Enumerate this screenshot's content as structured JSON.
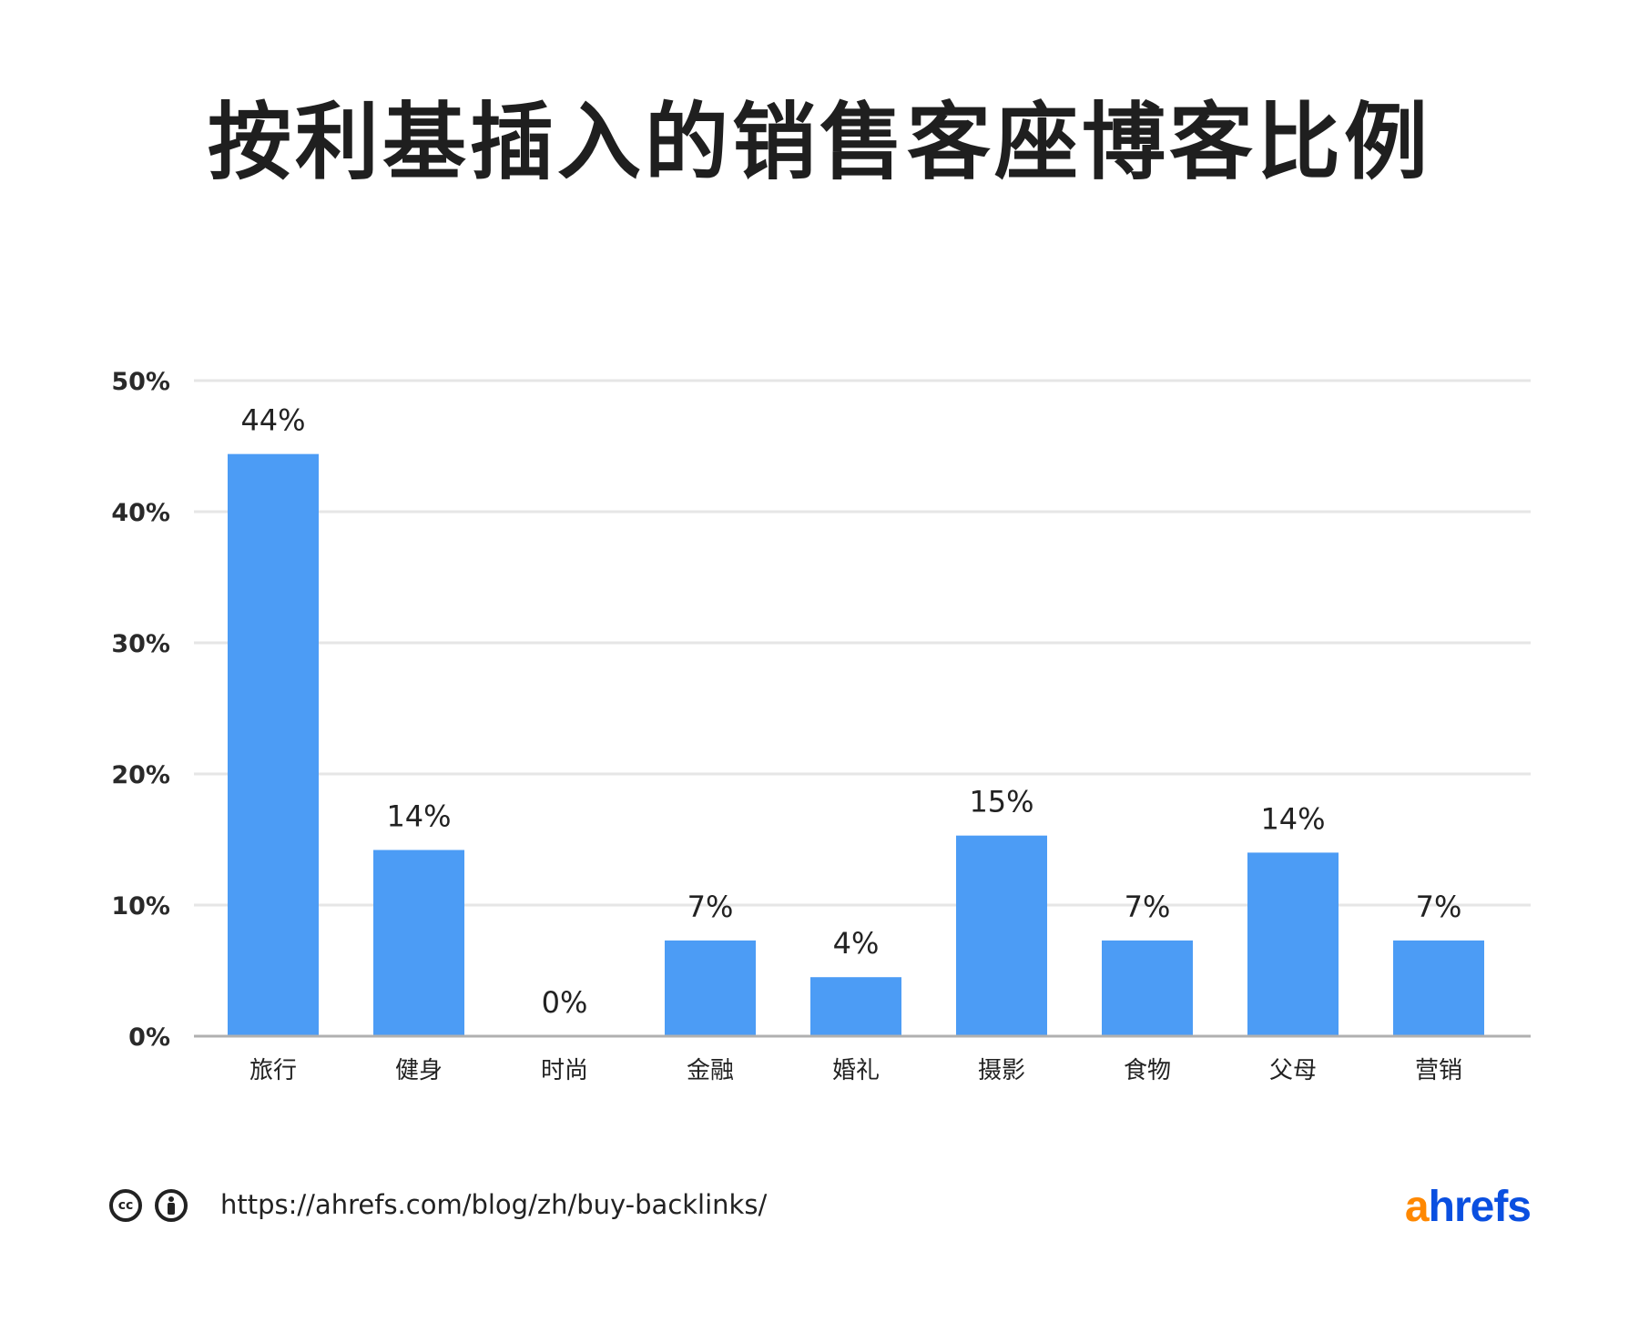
{
  "chart_data": {
    "type": "bar",
    "title": "按利基插入的销售客座博客比例",
    "xlabel": "",
    "ylabel": "",
    "categories": [
      "旅行",
      "健身",
      "时尚",
      "金融",
      "婚礼",
      "摄影",
      "食物",
      "父母",
      "营销"
    ],
    "values": [
      44.4,
      14.2,
      0,
      7.3,
      4.5,
      15.3,
      7.3,
      14.0,
      7.3
    ],
    "data_labels": [
      "44%",
      "14%",
      "0%",
      "7%",
      "4%",
      "15%",
      "7%",
      "14%",
      "7%"
    ],
    "ylim": [
      0,
      50
    ],
    "yticks": [
      0,
      10,
      20,
      30,
      40,
      50
    ],
    "ytick_labels": [
      "0%",
      "10%",
      "20%",
      "30%",
      "40%",
      "50%"
    ],
    "grid": true,
    "bar_color": "#4c9cf5",
    "gridline_color": "#e6e6e6",
    "axis_color": "#b0b0b0"
  },
  "footer": {
    "license_icons": [
      "creative-commons-icon",
      "attribution-icon"
    ],
    "cc_text": "cc",
    "url": "https://ahrefs.com/blog/zh/buy-backlinks/",
    "logo": {
      "first": "a",
      "rest": "hrefs",
      "first_color": "#ff8800",
      "rest_color": "#0a4fe0"
    }
  }
}
